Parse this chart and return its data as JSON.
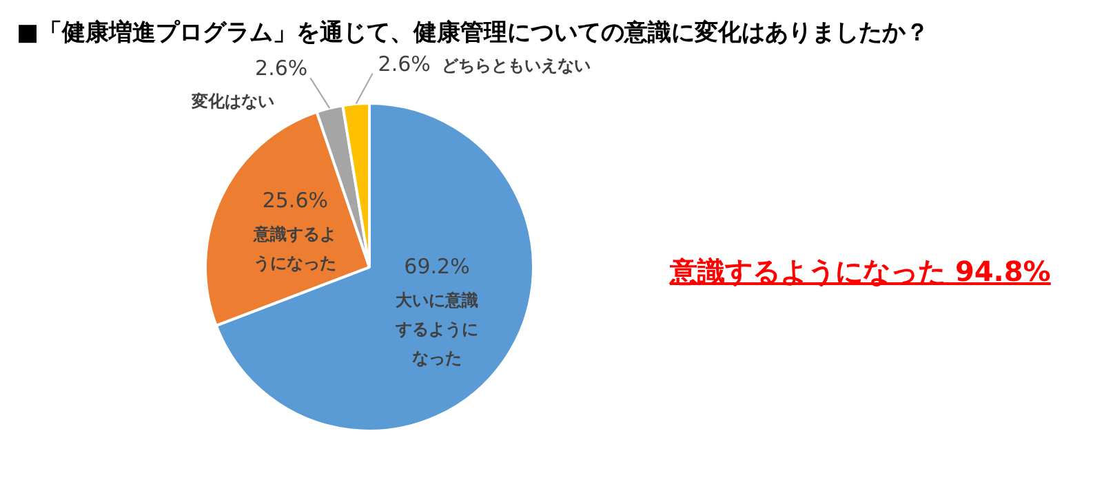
{
  "chart_data": {
    "type": "pie",
    "title": "■「健康増進プログラム」を通じて、健康管理についての意識に変化はありましたか？",
    "categories": [
      "大いに意識するようになった",
      "意識するようになった",
      "変化はない",
      "どちらともいえない"
    ],
    "values": [
      69.2,
      25.6,
      2.6,
      2.6
    ],
    "colors": [
      "#5b9bd5",
      "#ed7d31",
      "#a5a5a5",
      "#ffc000"
    ],
    "value_labels": [
      "69.2%",
      "25.6%",
      "2.6%",
      "2.6%"
    ],
    "legend": false,
    "annotations": [
      "意識するようになった 94.8%"
    ]
  }
}
